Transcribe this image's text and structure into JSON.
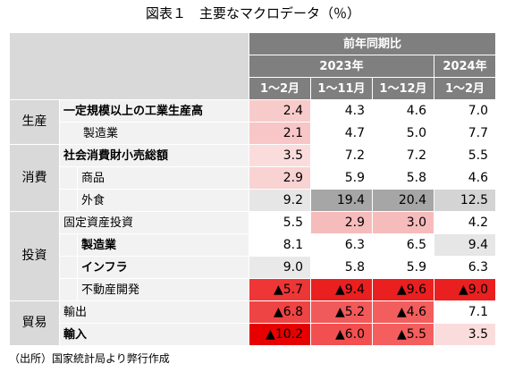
{
  "title": "図表１　主要なマクロデータ（％）",
  "header": {
    "top": "前年同期比",
    "year2023": "2023年",
    "year2024": "2024年",
    "periods": [
      "1～2月",
      "1～11月",
      "1～12月",
      "1～2月"
    ]
  },
  "groups": [
    {
      "label": "生産"
    },
    {
      "label": "消費"
    },
    {
      "label": "投資"
    },
    {
      "label": "貿易"
    }
  ],
  "rows": [
    {
      "label": "一定規模以上の工業生産高",
      "values": [
        "2.4",
        "4.3",
        "4.6",
        "7.0"
      ],
      "colors": [
        "#f8cbcb",
        "#ffffff",
        "#ffffff",
        "#ffffff"
      ]
    },
    {
      "label": "製造業",
      "values": [
        "2.1",
        "4.7",
        "5.0",
        "7.7"
      ],
      "colors": [
        "#f8c6c6",
        "#ffffff",
        "#ffffff",
        "#ffffff"
      ]
    },
    {
      "label": "社会消費財小売総額",
      "values": [
        "3.5",
        "7.2",
        "7.2",
        "5.5"
      ],
      "colors": [
        "#fbdcdc",
        "#ffffff",
        "#ffffff",
        "#ffffff"
      ]
    },
    {
      "label": "商品",
      "values": [
        "2.9",
        "5.9",
        "5.8",
        "4.6"
      ],
      "colors": [
        "#f9d2d2",
        "#ffffff",
        "#ffffff",
        "#ffffff"
      ]
    },
    {
      "label": "外食",
      "values": [
        "9.2",
        "19.4",
        "20.4",
        "12.5"
      ],
      "colors": [
        "#e6e6e6",
        "#a6a6a6",
        "#a6a6a6",
        "#d4d4d4"
      ]
    },
    {
      "label": "固定資産投資",
      "values": [
        "5.5",
        "2.9",
        "3.0",
        "4.2"
      ],
      "colors": [
        "#ffffff",
        "#f6bcbc",
        "#f6bcbc",
        "#ffffff"
      ]
    },
    {
      "label": "製造業",
      "values": [
        "8.1",
        "6.3",
        "6.5",
        "9.4"
      ],
      "colors": [
        "#ffffff",
        "#ffffff",
        "#ffffff",
        "#e6e6e6"
      ]
    },
    {
      "label": "インフラ",
      "values": [
        "9.0",
        "5.8",
        "5.9",
        "6.3"
      ],
      "colors": [
        "#e9e9e9",
        "#ffffff",
        "#ffffff",
        "#ffffff"
      ]
    },
    {
      "label": "不動産開発",
      "values": [
        "▲5.7",
        "▲9.4",
        "▲9.6",
        "▲9.0"
      ],
      "colors": [
        "#ee3636",
        "#ea1f1f",
        "#ea1f1f",
        "#ea1f1f"
      ]
    },
    {
      "label": "輸出",
      "values": [
        "▲6.8",
        "▲5.2",
        "▲4.6",
        "7.1"
      ],
      "colors": [
        "#ef4444",
        "#f15a5a",
        "#f25e5e",
        "#ffffff"
      ]
    },
    {
      "label": "輸入",
      "values": [
        "▲10.2",
        "▲6.0",
        "▲5.5",
        "3.5"
      ],
      "colors": [
        "#e60000",
        "#f25050",
        "#f45e5e",
        "#fbdcdc"
      ]
    }
  ],
  "note": "（出所）国家統計局より弊行作成"
}
